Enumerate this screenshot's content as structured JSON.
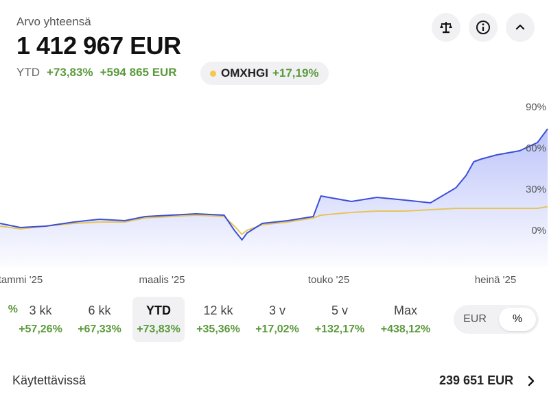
{
  "header": {
    "title": "Arvo yhteensä",
    "total_value": "1 412 967 EUR",
    "ytd_label": "YTD",
    "ytd_pct": "+73,83%",
    "ytd_abs": "+594 865 EUR"
  },
  "benchmark": {
    "name": "OMXHGI",
    "change": "+17,19%",
    "color": "#f2c94c"
  },
  "buttons": {
    "compare_icon": "scale-icon",
    "info_icon": "info-icon",
    "collapse_icon": "chevron-up-icon"
  },
  "periods": [
    {
      "label": "",
      "value": "%"
    },
    {
      "label": "3 kk",
      "value": "+57,26%"
    },
    {
      "label": "6 kk",
      "value": "+67,33%"
    },
    {
      "label": "YTD",
      "value": "+73,83%",
      "selected": true
    },
    {
      "label": "12 kk",
      "value": "+35,36%"
    },
    {
      "label": "3 v",
      "value": "+17,02%"
    },
    {
      "label": "5 v",
      "value": "+132,17%"
    },
    {
      "label": "Max",
      "value": "+438,12%"
    }
  ],
  "unit_toggle": {
    "options": [
      "EUR",
      "%"
    ],
    "selected": "%"
  },
  "available": {
    "label": "Käytettävissä",
    "value": "239 651 EUR"
  },
  "chart_data": {
    "type": "line",
    "title": "",
    "xlabel": "",
    "ylabel": "",
    "x_ticks": [
      "tammi '25",
      "maalis '25",
      "touko '25",
      "heinä '25"
    ],
    "y_ticks": [
      "90%",
      "60%",
      "30%",
      "0%"
    ],
    "y_tick_values": [
      90,
      60,
      30,
      0
    ],
    "ylim": [
      -12,
      92
    ],
    "grid": false,
    "legend": "none",
    "x": [
      "2025-01-02",
      "2025-01-10",
      "2025-01-20",
      "2025-01-31",
      "2025-02-10",
      "2025-02-20",
      "2025-02-28",
      "2025-03-10",
      "2025-03-20",
      "2025-03-31",
      "2025-04-04",
      "2025-04-07",
      "2025-04-09",
      "2025-04-15",
      "2025-04-25",
      "2025-05-05",
      "2025-05-08",
      "2025-05-20",
      "2025-05-30",
      "2025-06-10",
      "2025-06-20",
      "2025-06-30",
      "2025-07-04",
      "2025-07-07",
      "2025-07-10",
      "2025-07-16",
      "2025-07-25",
      "2025-08-01",
      "2025-08-05"
    ],
    "series": [
      {
        "name": "",
        "color": "#3b4fd8",
        "values": [
          5,
          2,
          3,
          6,
          8,
          7,
          10,
          11,
          12,
          11,
          0,
          -7,
          -2,
          5,
          7,
          10,
          25,
          21,
          24,
          22,
          20,
          31,
          40,
          50,
          52,
          55,
          58,
          64,
          74
        ]
      },
      {
        "name": "OMXHGI",
        "color": "#e5c45b",
        "values": [
          3,
          1,
          3,
          5,
          6,
          6,
          9,
          10,
          11,
          10,
          3,
          -3,
          0,
          4,
          6,
          9,
          11,
          13,
          14,
          14,
          15,
          16,
          16,
          16,
          16,
          16,
          16,
          16,
          17.2
        ]
      }
    ]
  }
}
